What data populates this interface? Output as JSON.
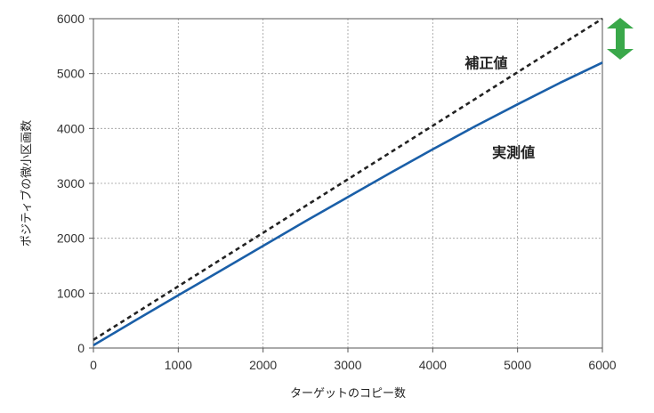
{
  "chart_data": {
    "type": "line",
    "xlabel": "ターゲットのコピー数",
    "ylabel": "ポジティブの微小区画数",
    "xlim": [
      0,
      6000
    ],
    "ylim": [
      0,
      6000
    ],
    "x_ticks": [
      0,
      1000,
      2000,
      3000,
      4000,
      5000,
      6000
    ],
    "y_ticks": [
      0,
      1000,
      2000,
      3000,
      4000,
      5000,
      6000
    ],
    "x_tick_labels": [
      "0",
      "1000",
      "2000",
      "3000",
      "4000",
      "5000",
      "6000"
    ],
    "y_tick_labels": [
      "0",
      "1000",
      "2000",
      "3000",
      "4000",
      "5000",
      "6000"
    ],
    "grid": true,
    "series": [
      {
        "name": "補正値",
        "style": "dashed",
        "color": "#222222",
        "x": [
          0,
          6000
        ],
        "y": [
          150,
          6000
        ]
      },
      {
        "name": "実測値",
        "style": "solid",
        "color": "#1a5fa8",
        "x": [
          0,
          500,
          1000,
          1500,
          2000,
          2500,
          3000,
          3500,
          4000,
          4500,
          5000,
          5500,
          6000
        ],
        "y": [
          50,
          510,
          960,
          1410,
          1860,
          2310,
          2750,
          3190,
          3620,
          4040,
          4440,
          4830,
          5200
        ]
      }
    ],
    "annotations": [
      {
        "text": "補正値",
        "x": 4380,
        "y": 5100
      },
      {
        "text": "実測値",
        "x": 4700,
        "y": 3470
      }
    ],
    "arrow_color": "#3aa84a"
  }
}
